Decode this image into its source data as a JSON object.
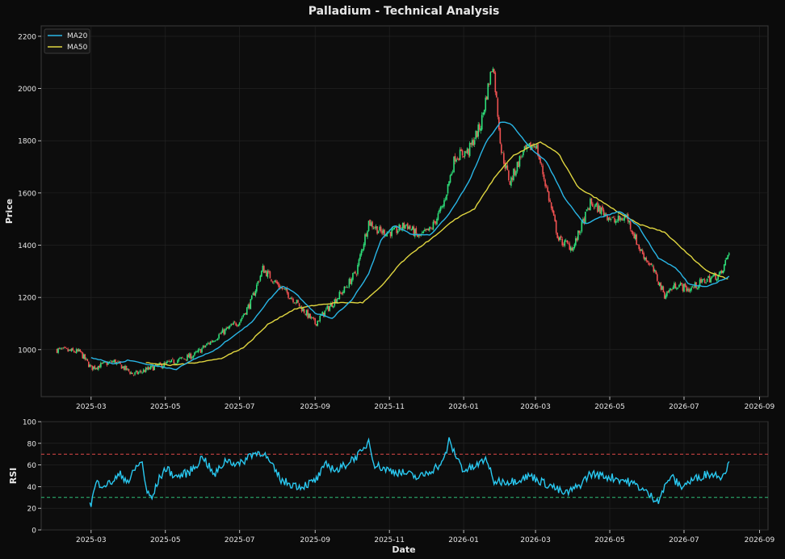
{
  "title": "Palladium - Technical Analysis",
  "colors": {
    "background": "#0b0b0b",
    "panel": "#0d0d0d",
    "grid": "#262626",
    "axis": "#3a3a3a",
    "text": "#e6e6e6",
    "up": "#2ee07a",
    "down": "#f05252",
    "ma20": "#29b6e6",
    "ma50": "#e0d640",
    "rsi": "#29c8f0",
    "overbought": "#e04848",
    "oversold": "#2ec07a"
  },
  "chart_data": [
    {
      "type": "candlestick",
      "title": "Palladium - Technical Analysis",
      "xlabel": "",
      "ylabel": "Price",
      "xlim": [
        "2025-01-19",
        "2026-09-08"
      ],
      "ylim": [
        820,
        2240
      ],
      "x_ticks": [
        "2025-03",
        "2025-05",
        "2025-07",
        "2025-09",
        "2025-11",
        "2026-01",
        "2026-03",
        "2026-05",
        "2026-07",
        "2026-09"
      ],
      "y_ticks": [
        1000,
        1200,
        1400,
        1600,
        1800,
        2000,
        2200
      ],
      "grid": true,
      "legend": {
        "position": "top-left",
        "entries": [
          "MA20",
          "MA50"
        ]
      },
      "price_anchors": [
        [
          "2025-02-01",
          1000
        ],
        [
          "2025-02-20",
          990
        ],
        [
          "2025-03-01",
          930
        ],
        [
          "2025-03-20",
          955
        ],
        [
          "2025-04-05",
          905
        ],
        [
          "2025-04-20",
          930
        ],
        [
          "2025-05-05",
          950
        ],
        [
          "2025-05-25",
          980
        ],
        [
          "2025-06-15",
          1060
        ],
        [
          "2025-07-01",
          1110
        ],
        [
          "2025-07-10",
          1180
        ],
        [
          "2025-07-20",
          1310
        ],
        [
          "2025-08-01",
          1250
        ],
        [
          "2025-08-15",
          1190
        ],
        [
          "2025-09-01",
          1100
        ],
        [
          "2025-09-10",
          1150
        ],
        [
          "2025-09-25",
          1230
        ],
        [
          "2025-10-05",
          1300
        ],
        [
          "2025-10-15",
          1490
        ],
        [
          "2025-10-25",
          1450
        ],
        [
          "2025-11-05",
          1450
        ],
        [
          "2025-11-15",
          1480
        ],
        [
          "2025-11-25",
          1430
        ],
        [
          "2025-12-05",
          1460
        ],
        [
          "2025-12-15",
          1550
        ],
        [
          "2025-12-25",
          1740
        ],
        [
          "2026-01-05",
          1760
        ],
        [
          "2026-01-15",
          1860
        ],
        [
          "2026-01-25",
          2100
        ],
        [
          "2026-02-01",
          1760
        ],
        [
          "2026-02-08",
          1640
        ],
        [
          "2026-02-18",
          1750
        ],
        [
          "2026-03-01",
          1790
        ],
        [
          "2026-03-10",
          1620
        ],
        [
          "2026-03-20",
          1420
        ],
        [
          "2026-04-01",
          1390
        ],
        [
          "2026-04-15",
          1560
        ],
        [
          "2026-04-25",
          1530
        ],
        [
          "2026-05-05",
          1490
        ],
        [
          "2026-05-15",
          1510
        ],
        [
          "2026-05-25",
          1390
        ],
        [
          "2026-06-05",
          1310
        ],
        [
          "2026-06-15",
          1210
        ],
        [
          "2026-06-25",
          1250
        ],
        [
          "2026-07-05",
          1230
        ],
        [
          "2026-07-20",
          1270
        ],
        [
          "2026-08-01",
          1290
        ],
        [
          "2026-08-07",
          1380
        ]
      ],
      "ma20_anchors": [
        [
          "2025-03-01",
          970
        ],
        [
          "2025-03-20",
          945
        ],
        [
          "2025-04-01",
          960
        ],
        [
          "2025-04-20",
          940
        ],
        [
          "2025-05-10",
          925
        ],
        [
          "2025-05-25",
          965
        ],
        [
          "2025-06-10",
          995
        ],
        [
          "2025-06-25",
          1050
        ],
        [
          "2025-07-10",
          1100
        ],
        [
          "2025-07-25",
          1190
        ],
        [
          "2025-08-05",
          1245
        ],
        [
          "2025-08-15",
          1220
        ],
        [
          "2025-09-01",
          1140
        ],
        [
          "2025-09-15",
          1120
        ],
        [
          "2025-10-01",
          1190
        ],
        [
          "2025-10-15",
          1290
        ],
        [
          "2025-10-25",
          1420
        ],
        [
          "2025-11-05",
          1475
        ],
        [
          "2025-11-20",
          1440
        ],
        [
          "2025-12-05",
          1440
        ],
        [
          "2025-12-20",
          1520
        ],
        [
          "2026-01-05",
          1640
        ],
        [
          "2026-01-20",
          1800
        ],
        [
          "2026-02-01",
          1875
        ],
        [
          "2026-02-10",
          1860
        ],
        [
          "2026-02-25",
          1770
        ],
        [
          "2026-03-10",
          1720
        ],
        [
          "2026-03-25",
          1580
        ],
        [
          "2026-04-10",
          1480
        ],
        [
          "2026-04-25",
          1510
        ],
        [
          "2026-05-10",
          1530
        ],
        [
          "2026-05-25",
          1470
        ],
        [
          "2026-06-10",
          1350
        ],
        [
          "2026-06-25",
          1310
        ],
        [
          "2026-07-05",
          1250
        ],
        [
          "2026-07-20",
          1240
        ],
        [
          "2026-08-07",
          1280
        ]
      ],
      "ma50_anchors": [
        [
          "2025-04-15",
          950
        ],
        [
          "2025-05-05",
          940
        ],
        [
          "2025-05-25",
          950
        ],
        [
          "2025-06-15",
          965
        ],
        [
          "2025-07-05",
          1010
        ],
        [
          "2025-07-25",
          1100
        ],
        [
          "2025-08-15",
          1155
        ],
        [
          "2025-09-01",
          1170
        ],
        [
          "2025-09-20",
          1180
        ],
        [
          "2025-10-10",
          1180
        ],
        [
          "2025-10-25",
          1240
        ],
        [
          "2025-11-10",
          1330
        ],
        [
          "2025-11-25",
          1390
        ],
        [
          "2025-12-10",
          1440
        ],
        [
          "2025-12-25",
          1500
        ],
        [
          "2026-01-10",
          1540
        ],
        [
          "2026-01-25",
          1650
        ],
        [
          "2026-02-10",
          1740
        ],
        [
          "2026-02-25",
          1780
        ],
        [
          "2026-03-05",
          1795
        ],
        [
          "2026-03-20",
          1750
        ],
        [
          "2026-04-05",
          1620
        ],
        [
          "2026-04-20",
          1580
        ],
        [
          "2026-05-10",
          1520
        ],
        [
          "2026-05-25",
          1480
        ],
        [
          "2026-06-15",
          1450
        ],
        [
          "2026-07-01",
          1380
        ],
        [
          "2026-07-20",
          1300
        ],
        [
          "2026-08-07",
          1270
        ]
      ]
    },
    {
      "type": "line",
      "xlabel": "Date",
      "ylabel": "RSI",
      "xlim": [
        "2025-01-19",
        "2026-09-08"
      ],
      "ylim": [
        0,
        100
      ],
      "x_ticks": [
        "2025-03",
        "2025-05",
        "2025-07",
        "2025-09",
        "2025-11",
        "2026-01",
        "2026-03",
        "2026-05",
        "2026-07",
        "2026-09"
      ],
      "y_ticks": [
        0,
        20,
        40,
        60,
        80,
        100
      ],
      "reference_lines": [
        70,
        30
      ],
      "grid": true,
      "rsi_anchors": [
        [
          "2025-02-28",
          27
        ],
        [
          "2025-03-01",
          24
        ],
        [
          "2025-03-05",
          43
        ],
        [
          "2025-03-15",
          42
        ],
        [
          "2025-03-25",
          51
        ],
        [
          "2025-04-01",
          45
        ],
        [
          "2025-04-08",
          60
        ],
        [
          "2025-04-12",
          62
        ],
        [
          "2025-04-16",
          34
        ],
        [
          "2025-04-20",
          29
        ],
        [
          "2025-04-25",
          45
        ],
        [
          "2025-05-01",
          57
        ],
        [
          "2025-05-10",
          49
        ],
        [
          "2025-05-20",
          53
        ],
        [
          "2025-05-25",
          58
        ],
        [
          "2025-06-01",
          68
        ],
        [
          "2025-06-10",
          50
        ],
        [
          "2025-06-20",
          65
        ],
        [
          "2025-07-01",
          60
        ],
        [
          "2025-07-10",
          70
        ],
        [
          "2025-07-20",
          72
        ],
        [
          "2025-07-28",
          58
        ],
        [
          "2025-08-05",
          45
        ],
        [
          "2025-08-20",
          40
        ],
        [
          "2025-09-01",
          45
        ],
        [
          "2025-09-10",
          60
        ],
        [
          "2025-09-20",
          55
        ],
        [
          "2025-10-01",
          65
        ],
        [
          "2025-10-10",
          72
        ],
        [
          "2025-10-15",
          83
        ],
        [
          "2025-10-20",
          60
        ],
        [
          "2025-11-01",
          55
        ],
        [
          "2025-11-15",
          52
        ],
        [
          "2025-11-25",
          48
        ],
        [
          "2025-12-05",
          55
        ],
        [
          "2025-12-15",
          62
        ],
        [
          "2025-12-20",
          82
        ],
        [
          "2025-12-25",
          70
        ],
        [
          "2026-01-01",
          55
        ],
        [
          "2026-01-10",
          58
        ],
        [
          "2026-01-20",
          66
        ],
        [
          "2026-01-25",
          45
        ],
        [
          "2026-02-10",
          45
        ],
        [
          "2026-02-25",
          50
        ],
        [
          "2026-03-05",
          45
        ],
        [
          "2026-03-15",
          40
        ],
        [
          "2026-03-25",
          33
        ],
        [
          "2026-04-05",
          40
        ],
        [
          "2026-04-15",
          52
        ],
        [
          "2026-04-25",
          50
        ],
        [
          "2026-05-05",
          48
        ],
        [
          "2026-05-15",
          45
        ],
        [
          "2026-05-25",
          40
        ],
        [
          "2026-06-05",
          30
        ],
        [
          "2026-06-10",
          28
        ],
        [
          "2026-06-20",
          50
        ],
        [
          "2026-06-28",
          40
        ],
        [
          "2026-07-10",
          47
        ],
        [
          "2026-07-20",
          52
        ],
        [
          "2026-08-01",
          50
        ],
        [
          "2026-08-07",
          61
        ]
      ]
    }
  ]
}
